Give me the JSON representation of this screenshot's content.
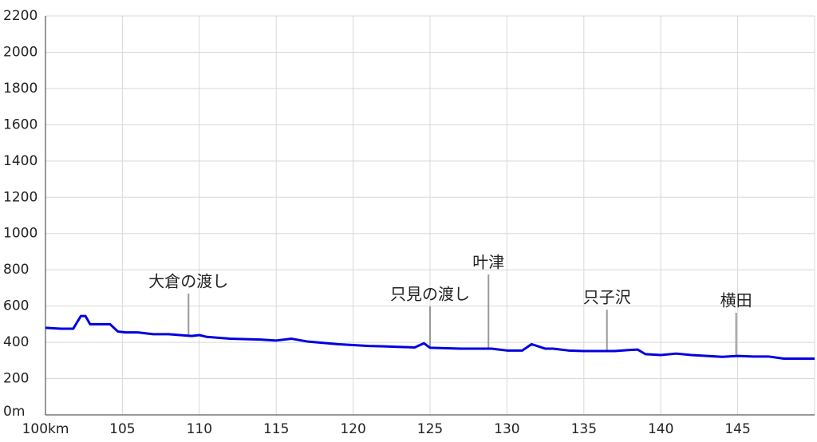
{
  "chart_data": {
    "type": "line",
    "x": [
      100,
      101,
      101.8,
      102.3,
      102.6,
      102.9,
      103.5,
      104.2,
      104.7,
      105.2,
      106,
      107,
      108,
      109.5,
      110,
      110.5,
      112,
      114,
      115,
      116,
      117,
      119,
      120,
      121,
      122,
      124,
      124.6,
      125,
      127,
      129,
      130,
      131,
      131.6,
      132.5,
      133,
      134,
      135,
      137,
      138,
      138.5,
      139,
      140,
      141,
      142,
      143,
      144,
      145,
      146,
      147,
      148,
      150
    ],
    "series": [
      {
        "color": "#0000e0",
        "values": [
          480,
          475,
          475,
          545,
          545,
          500,
          500,
          500,
          460,
          455,
          455,
          445,
          445,
          435,
          440,
          430,
          420,
          415,
          410,
          420,
          405,
          390,
          385,
          380,
          378,
          372,
          395,
          370,
          365,
          365,
          355,
          355,
          390,
          365,
          365,
          355,
          352,
          352,
          358,
          360,
          335,
          330,
          338,
          330,
          325,
          320,
          325,
          322,
          322,
          310,
          310
        ]
      }
    ],
    "xlim": [
      100,
      150
    ],
    "xticks": [
      {
        "value": 100,
        "label": "100km"
      },
      105,
      110,
      115,
      120,
      125,
      130,
      135,
      140,
      145
    ],
    "ylim": [
      0,
      2200
    ],
    "yticks": [
      {
        "value": 0,
        "label": "0m"
      },
      200,
      400,
      600,
      800,
      1000,
      1200,
      1400,
      1600,
      1800,
      2000,
      2200
    ],
    "grid": true,
    "annotations": [
      {
        "text": "大倉の渡し",
        "x": 109.3
      },
      {
        "text": "只見の渡し",
        "x": 125
      },
      {
        "text": "叶津",
        "x": 128.8
      },
      {
        "text": "只子沢",
        "x": 136.5
      },
      {
        "text": "横田",
        "x": 144.9
      }
    ]
  }
}
